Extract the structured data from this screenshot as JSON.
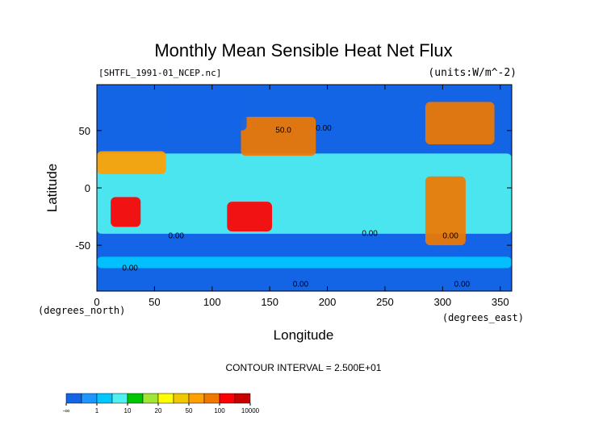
{
  "chart_data": {
    "type": "heatmap",
    "title": "Monthly Mean Sensible Heat Net Flux",
    "source_file": "[SHTFL_1991-01_NCEP.nc]",
    "units_label": "(units:W/m^-2)",
    "xlabel": "Longitude",
    "ylabel": "Latitude",
    "x_unit_label": "(degrees_east)",
    "y_unit_label": "(degrees_north)",
    "xlim": [
      0,
      360
    ],
    "ylim": [
      -90,
      90
    ],
    "x_ticks": [
      0,
      50,
      100,
      150,
      200,
      250,
      300,
      350
    ],
    "x_tick_labels": [
      "0",
      "50",
      "100",
      "150",
      "200",
      "250",
      "300",
      "350"
    ],
    "y_ticks": [
      50,
      0,
      -50
    ],
    "y_tick_labels": [
      "50",
      "0",
      "-50"
    ],
    "contour_interval_text": "CONTOUR INTERVAL = 2.500E+01",
    "contour_value_labels": [
      "50.0",
      "0.00",
      "0.00",
      "0.00",
      "0.00",
      "0.00",
      "0.00",
      "0.00"
    ],
    "grid": false,
    "colorbar": {
      "orientation": "horizontal",
      "position": "bottom-left",
      "bins": [
        {
          "color": "#1464e6"
        },
        {
          "color": "#1e96ff"
        },
        {
          "color": "#00c8ff"
        },
        {
          "color": "#50f0f0"
        },
        {
          "color": "#00c800"
        },
        {
          "color": "#a0e632"
        },
        {
          "color": "#ffff00"
        },
        {
          "color": "#f0c800"
        },
        {
          "color": "#ffa000"
        },
        {
          "color": "#f07800"
        },
        {
          "color": "#ff0000"
        },
        {
          "color": "#c80000"
        }
      ],
      "tick_labels": [
        "-∞",
        "1",
        "10",
        "20",
        "50",
        "100",
        "10000"
      ],
      "tick_bin_edges": [
        0,
        2,
        4,
        6,
        8,
        10,
        12
      ]
    },
    "field_regions": [
      {
        "name": "southern-ocean",
        "lon": [
          0,
          360
        ],
        "lat": [
          -60,
          -40
        ],
        "level": 0
      },
      {
        "name": "antarctic-coast",
        "lon": [
          0,
          360
        ],
        "lat": [
          -70,
          -60
        ],
        "level": 2
      },
      {
        "name": "tropical-band",
        "lon": [
          0,
          360
        ],
        "lat": [
          -40,
          30
        ],
        "level": 3
      },
      {
        "name": "north-atlantic-west",
        "lon": [
          285,
          345
        ],
        "lat": [
          38,
          75
        ],
        "level": 9
      },
      {
        "name": "kuroshio",
        "lon": [
          125,
          190
        ],
        "lat": [
          28,
          62
        ],
        "level": 9
      },
      {
        "name": "australia",
        "lon": [
          113,
          152
        ],
        "lat": [
          -38,
          -12
        ],
        "level": 10
      },
      {
        "name": "south-america",
        "lon": [
          285,
          320
        ],
        "lat": [
          -50,
          10
        ],
        "level": 9
      },
      {
        "name": "southern-africa",
        "lon": [
          12,
          38
        ],
        "lat": [
          -34,
          -8
        ],
        "level": 10
      },
      {
        "name": "sahara-arabia",
        "lon": [
          0,
          60
        ],
        "lat": [
          12,
          32
        ],
        "level": 8
      },
      {
        "name": "siberia",
        "lon": [
          60,
          130
        ],
        "lat": [
          50,
          80
        ],
        "level": 0
      }
    ]
  }
}
